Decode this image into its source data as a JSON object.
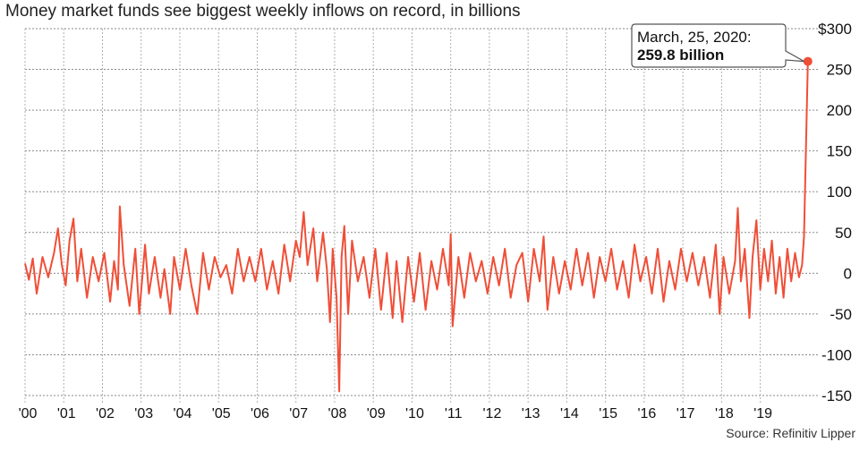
{
  "chart_data": {
    "type": "line",
    "title": "Money market funds see biggest weekly inflows on record, in billions",
    "source": "Source: Refinitiv Lipper",
    "xlabel": "",
    "ylabel": "",
    "xlim": [
      2000.0,
      2020.35
    ],
    "ylim": [
      -150,
      300
    ],
    "yticks": [
      300,
      250,
      200,
      150,
      100,
      50,
      0,
      -50,
      -100,
      -150
    ],
    "ytick_labels": [
      "$300",
      "250",
      "200",
      "150",
      "100",
      "50",
      "0",
      "-50",
      "-100",
      "-150"
    ],
    "xticks": [
      2000,
      2001,
      2002,
      2003,
      2004,
      2005,
      2006,
      2007,
      2008,
      2009,
      2010,
      2011,
      2012,
      2013,
      2014,
      2015,
      2016,
      2017,
      2018,
      2019
    ],
    "xtick_labels": [
      "'00",
      "'01",
      "'02",
      "'03",
      "'04",
      "'05",
      "'06",
      "'07",
      "'08",
      "'09",
      "'10",
      "'11",
      "'12",
      "'13",
      "'14",
      "'15",
      "'16",
      "'17",
      "'18",
      "'19"
    ],
    "grid": true,
    "line_color": "#f04e37",
    "annotation": {
      "line1": "March,  25, 2020:",
      "line2": "259.8 billion",
      "x": 2020.23,
      "y": 259.8
    },
    "series": [
      {
        "values": [
          [
            2000.0,
            12
          ],
          [
            2000.1,
            -8
          ],
          [
            2000.2,
            18
          ],
          [
            2000.3,
            -25
          ],
          [
            2000.45,
            20
          ],
          [
            2000.6,
            -5
          ],
          [
            2000.75,
            25
          ],
          [
            2000.85,
            55
          ],
          [
            2000.95,
            10
          ],
          [
            2001.05,
            -15
          ],
          [
            2001.15,
            40
          ],
          [
            2001.25,
            67
          ],
          [
            2001.35,
            -10
          ],
          [
            2001.45,
            30
          ],
          [
            2001.6,
            -30
          ],
          [
            2001.75,
            20
          ],
          [
            2001.9,
            -10
          ],
          [
            2002.05,
            25
          ],
          [
            2002.2,
            -35
          ],
          [
            2002.3,
            15
          ],
          [
            2002.4,
            -20
          ],
          [
            2002.45,
            82
          ],
          [
            2002.55,
            10
          ],
          [
            2002.7,
            -40
          ],
          [
            2002.85,
            30
          ],
          [
            2002.95,
            -50
          ],
          [
            2003.1,
            35
          ],
          [
            2003.2,
            -25
          ],
          [
            2003.35,
            20
          ],
          [
            2003.5,
            -30
          ],
          [
            2003.6,
            5
          ],
          [
            2003.75,
            -50
          ],
          [
            2003.85,
            20
          ],
          [
            2004.0,
            -20
          ],
          [
            2004.15,
            30
          ],
          [
            2004.3,
            -15
          ],
          [
            2004.45,
            -50
          ],
          [
            2004.6,
            25
          ],
          [
            2004.75,
            -20
          ],
          [
            2004.9,
            20
          ],
          [
            2005.05,
            -5
          ],
          [
            2005.2,
            10
          ],
          [
            2005.35,
            -25
          ],
          [
            2005.5,
            30
          ],
          [
            2005.65,
            -10
          ],
          [
            2005.8,
            20
          ],
          [
            2005.95,
            -10
          ],
          [
            2006.1,
            30
          ],
          [
            2006.25,
            -20
          ],
          [
            2006.4,
            15
          ],
          [
            2006.55,
            -25
          ],
          [
            2006.7,
            35
          ],
          [
            2006.85,
            -10
          ],
          [
            2007.0,
            40
          ],
          [
            2007.1,
            20
          ],
          [
            2007.2,
            75
          ],
          [
            2007.3,
            10
          ],
          [
            2007.45,
            55
          ],
          [
            2007.55,
            -10
          ],
          [
            2007.7,
            50
          ],
          [
            2007.8,
            5
          ],
          [
            2007.88,
            -60
          ],
          [
            2007.95,
            30
          ],
          [
            2008.05,
            -30
          ],
          [
            2008.12,
            -145
          ],
          [
            2008.18,
            20
          ],
          [
            2008.25,
            58
          ],
          [
            2008.35,
            -50
          ],
          [
            2008.45,
            40
          ],
          [
            2008.6,
            -10
          ],
          [
            2008.75,
            20
          ],
          [
            2008.9,
            -30
          ],
          [
            2009.05,
            30
          ],
          [
            2009.2,
            -45
          ],
          [
            2009.35,
            25
          ],
          [
            2009.5,
            -55
          ],
          [
            2009.6,
            15
          ],
          [
            2009.75,
            -60
          ],
          [
            2009.9,
            20
          ],
          [
            2010.05,
            -35
          ],
          [
            2010.2,
            25
          ],
          [
            2010.35,
            -45
          ],
          [
            2010.5,
            15
          ],
          [
            2010.65,
            -20
          ],
          [
            2010.8,
            30
          ],
          [
            2010.95,
            -15
          ],
          [
            2011.0,
            48
          ],
          [
            2011.05,
            -65
          ],
          [
            2011.2,
            20
          ],
          [
            2011.35,
            -30
          ],
          [
            2011.5,
            25
          ],
          [
            2011.65,
            -10
          ],
          [
            2011.8,
            15
          ],
          [
            2011.95,
            -25
          ],
          [
            2012.1,
            20
          ],
          [
            2012.25,
            -15
          ],
          [
            2012.4,
            30
          ],
          [
            2012.55,
            -30
          ],
          [
            2012.7,
            10
          ],
          [
            2012.85,
            25
          ],
          [
            2013.0,
            -35
          ],
          [
            2013.15,
            30
          ],
          [
            2013.3,
            -10
          ],
          [
            2013.4,
            45
          ],
          [
            2013.5,
            -45
          ],
          [
            2013.65,
            20
          ],
          [
            2013.8,
            -25
          ],
          [
            2013.95,
            15
          ],
          [
            2014.1,
            -20
          ],
          [
            2014.25,
            30
          ],
          [
            2014.4,
            -15
          ],
          [
            2014.55,
            25
          ],
          [
            2014.7,
            -30
          ],
          [
            2014.85,
            20
          ],
          [
            2015.0,
            -10
          ],
          [
            2015.15,
            30
          ],
          [
            2015.3,
            -20
          ],
          [
            2015.45,
            15
          ],
          [
            2015.6,
            -30
          ],
          [
            2015.75,
            35
          ],
          [
            2015.9,
            -10
          ],
          [
            2016.05,
            20
          ],
          [
            2016.2,
            -25
          ],
          [
            2016.35,
            30
          ],
          [
            2016.5,
            -35
          ],
          [
            2016.65,
            15
          ],
          [
            2016.8,
            -20
          ],
          [
            2016.95,
            30
          ],
          [
            2017.1,
            -10
          ],
          [
            2017.25,
            25
          ],
          [
            2017.4,
            -15
          ],
          [
            2017.55,
            20
          ],
          [
            2017.7,
            -30
          ],
          [
            2017.85,
            35
          ],
          [
            2017.95,
            -50
          ],
          [
            2018.05,
            20
          ],
          [
            2018.2,
            -25
          ],
          [
            2018.35,
            15
          ],
          [
            2018.42,
            80
          ],
          [
            2018.5,
            -10
          ],
          [
            2018.6,
            30
          ],
          [
            2018.72,
            -55
          ],
          [
            2018.8,
            20
          ],
          [
            2018.9,
            65
          ],
          [
            2019.0,
            -20
          ],
          [
            2019.1,
            30
          ],
          [
            2019.2,
            -10
          ],
          [
            2019.3,
            40
          ],
          [
            2019.4,
            -25
          ],
          [
            2019.5,
            20
          ],
          [
            2019.6,
            -30
          ],
          [
            2019.7,
            30
          ],
          [
            2019.8,
            -10
          ],
          [
            2019.9,
            25
          ],
          [
            2020.0,
            -5
          ],
          [
            2020.08,
            10
          ],
          [
            2020.13,
            45
          ],
          [
            2020.18,
            150
          ],
          [
            2020.23,
            259.8
          ]
        ]
      }
    ]
  }
}
